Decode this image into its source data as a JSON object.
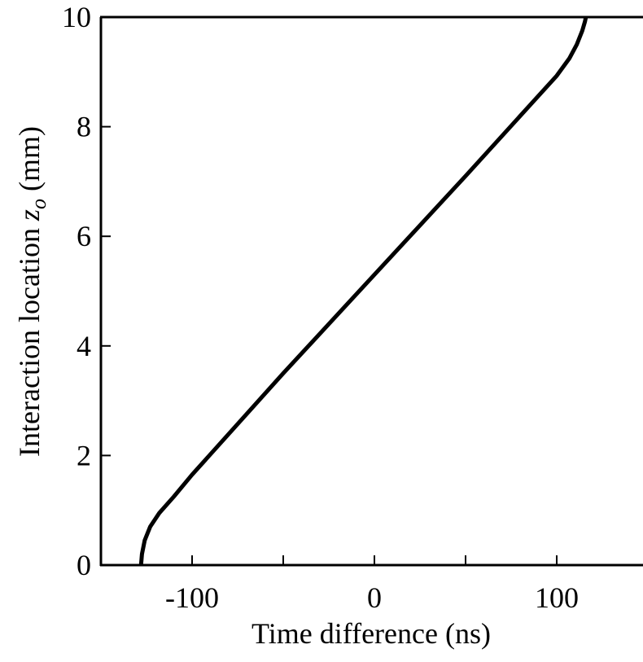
{
  "chart_data": {
    "type": "line",
    "xlabel": "Time difference (ns)",
    "ylabel": {
      "text": "Interaction location ",
      "var": "z",
      "sub": "o",
      "unit": " (mm)"
    },
    "x": [
      -128,
      -127.5,
      -126,
      -123,
      -118,
      -110,
      -100,
      -50,
      0,
      50,
      100,
      107,
      111,
      114,
      115.5,
      116
    ],
    "series": [
      {
        "color": "#000000",
        "values": [
          0,
          0.2,
          0.45,
          0.7,
          0.95,
          1.25,
          1.65,
          3.5,
          5.3,
          7.1,
          8.93,
          9.25,
          9.5,
          9.75,
          9.92,
          10
        ]
      }
    ],
    "xlim": [
      -150,
      150
    ],
    "xticks": [
      -100,
      0,
      100
    ],
    "xminor_ticks": [
      -50,
      50
    ],
    "ylim": [
      0,
      10
    ],
    "yticks": [
      0,
      2,
      4,
      6,
      8,
      10
    ],
    "grid": false
  }
}
